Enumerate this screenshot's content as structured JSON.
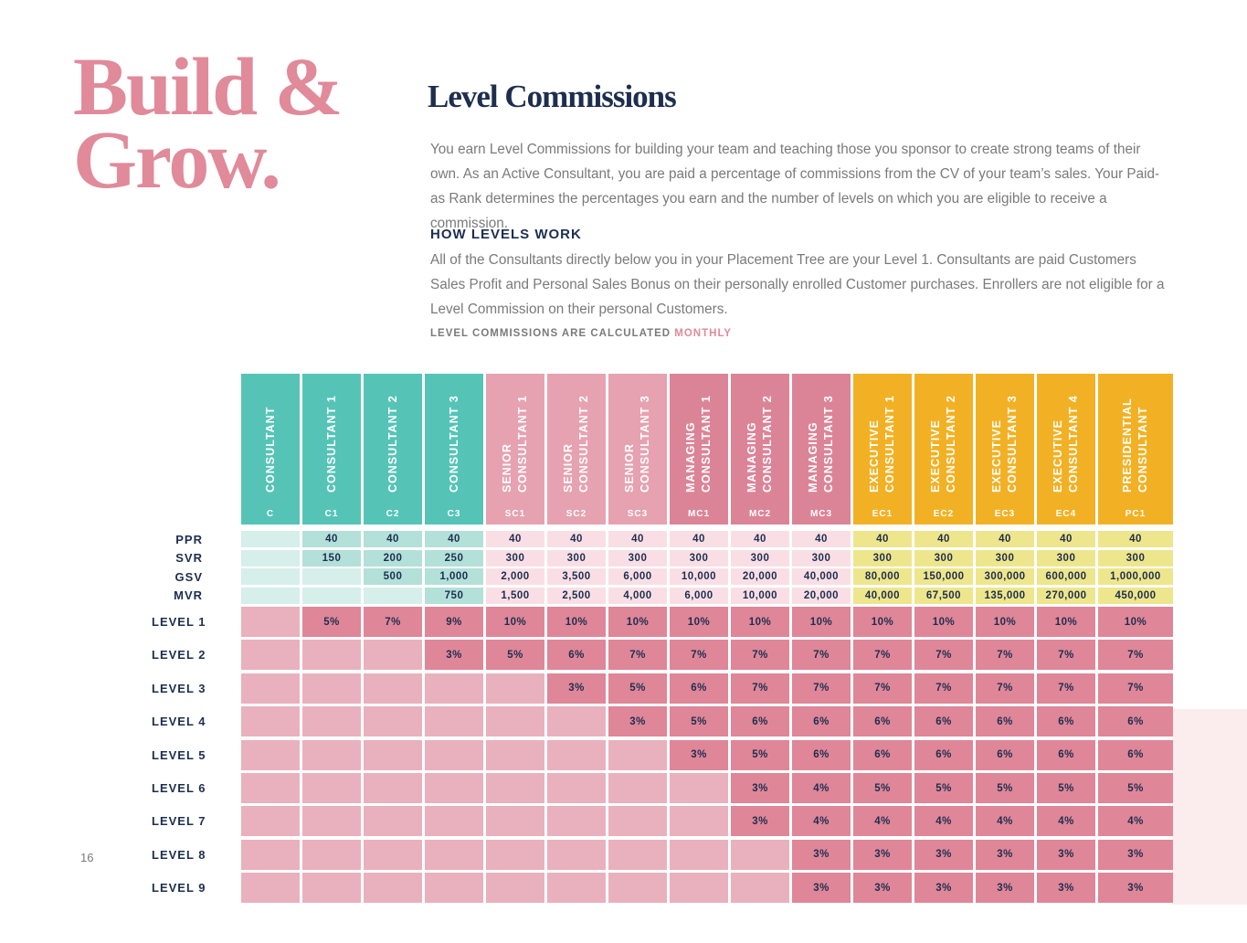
{
  "heading": [
    "Build &",
    "Grow."
  ],
  "title": "Level Commissions",
  "intro": "You earn Level Commissions for building your team and teaching those you sponsor to create strong teams of their own. As an Active Consultant, you are paid a percentage of commissions from the CV of your team’s sales. Your Paid-as Rank determines the percentages you earn and the number of levels on which you are eligible to receive a commission.",
  "subheading": "HOW LEVELS WORK",
  "body": "All of the Consultants directly below you in your Placement Tree are your Level 1. Consultants are paid Customers Sales Profit and Personal Sales Bonus on their personally enrolled Customer purchases. Enrollers are not eligible for a Level Commission on their personal Customers.",
  "note": {
    "text": "LEVEL COMMISSIONS ARE CALCULATED",
    "highlight": "MONTHLY"
  },
  "page_number": "16",
  "table": {
    "columns": [
      {
        "name": "CONSULTANT",
        "code": "C",
        "color": "#55c4b6"
      },
      {
        "name": "CONSULTANT 1",
        "code": "C1",
        "color": "#55c4b6"
      },
      {
        "name": "CONSULTANT 2",
        "code": "C2",
        "color": "#55c4b6"
      },
      {
        "name": "CONSULTANT 3",
        "code": "C3",
        "color": "#55c4b6"
      },
      {
        "name": "SENIOR CONSULTANT 1",
        "code": "SC1",
        "color": "#e6a2b1"
      },
      {
        "name": "SENIOR CONSULTANT 2",
        "code": "SC2",
        "color": "#e6a2b1"
      },
      {
        "name": "SENIOR CONSULTANT 3",
        "code": "SC3",
        "color": "#e6a2b1"
      },
      {
        "name": "MANAGING CONSULTANT 1",
        "code": "MC1",
        "color": "#dc8497"
      },
      {
        "name": "MANAGING CONSULTANT 2",
        "code": "MC2",
        "color": "#dc8497"
      },
      {
        "name": "MANAGING CONSULTANT 3",
        "code": "MC3",
        "color": "#dc8497"
      },
      {
        "name": "EXECUTIVE CONSULTANT 1",
        "code": "EC1",
        "color": "#f2b124"
      },
      {
        "name": "EXECUTIVE CONSULTANT 2",
        "code": "EC2",
        "color": "#f2b124"
      },
      {
        "name": "EXECUTIVE CONSULTANT 3",
        "code": "EC3",
        "color": "#f2b124"
      },
      {
        "name": "EXECUTIVE CONSULTANT 4",
        "code": "EC4",
        "color": "#f2b124"
      },
      {
        "name": "PRESIDENTIAL CONSULTANT",
        "code": "PC1",
        "color": "#f2b124"
      }
    ],
    "requirements": [
      {
        "label": "PPR",
        "cells": [
          null,
          "40",
          "40",
          "40",
          "40",
          "40",
          "40",
          "40",
          "40",
          "40",
          "40",
          "40",
          "40",
          "40",
          "40"
        ]
      },
      {
        "label": "SVR",
        "cells": [
          null,
          "150",
          "200",
          "250",
          "300",
          "300",
          "300",
          "300",
          "300",
          "300",
          "300",
          "300",
          "300",
          "300",
          "300"
        ]
      },
      {
        "label": "GSV",
        "cells": [
          null,
          null,
          "500",
          "1,000",
          "2,000",
          "3,500",
          "6,000",
          "10,000",
          "20,000",
          "40,000",
          "80,000",
          "150,000",
          "300,000",
          "600,000",
          "1,000,000"
        ]
      },
      {
        "label": "MVR",
        "cells": [
          null,
          null,
          null,
          "750",
          "1,500",
          "2,500",
          "4,000",
          "6,000",
          "10,000",
          "20,000",
          "40,000",
          "67,500",
          "135,000",
          "270,000",
          "450,000"
        ]
      }
    ],
    "levels": [
      {
        "label": "LEVEL 1",
        "cells": [
          null,
          "5%",
          "7%",
          "9%",
          "10%",
          "10%",
          "10%",
          "10%",
          "10%",
          "10%",
          "10%",
          "10%",
          "10%",
          "10%",
          "10%"
        ]
      },
      {
        "label": "LEVEL 2",
        "cells": [
          null,
          null,
          null,
          "3%",
          "5%",
          "6%",
          "7%",
          "7%",
          "7%",
          "7%",
          "7%",
          "7%",
          "7%",
          "7%",
          "7%"
        ]
      },
      {
        "label": "LEVEL 3",
        "cells": [
          null,
          null,
          null,
          null,
          null,
          "3%",
          "5%",
          "6%",
          "7%",
          "7%",
          "7%",
          "7%",
          "7%",
          "7%",
          "7%"
        ]
      },
      {
        "label": "LEVEL 4",
        "cells": [
          null,
          null,
          null,
          null,
          null,
          null,
          "3%",
          "5%",
          "6%",
          "6%",
          "6%",
          "6%",
          "6%",
          "6%",
          "6%"
        ]
      },
      {
        "label": "LEVEL 5",
        "cells": [
          null,
          null,
          null,
          null,
          null,
          null,
          null,
          "3%",
          "5%",
          "6%",
          "6%",
          "6%",
          "6%",
          "6%",
          "6%"
        ]
      },
      {
        "label": "LEVEL 6",
        "cells": [
          null,
          null,
          null,
          null,
          null,
          null,
          null,
          null,
          "3%",
          "4%",
          "5%",
          "5%",
          "5%",
          "5%",
          "5%"
        ]
      },
      {
        "label": "LEVEL 7",
        "cells": [
          null,
          null,
          null,
          null,
          null,
          null,
          null,
          null,
          "3%",
          "4%",
          "4%",
          "4%",
          "4%",
          "4%",
          "4%"
        ]
      },
      {
        "label": "LEVEL 8",
        "cells": [
          null,
          null,
          null,
          null,
          null,
          null,
          null,
          null,
          null,
          "3%",
          "3%",
          "3%",
          "3%",
          "3%",
          "3%"
        ]
      },
      {
        "label": "LEVEL 9",
        "cells": [
          null,
          null,
          null,
          null,
          null,
          null,
          null,
          null,
          null,
          "3%",
          "3%",
          "3%",
          "3%",
          "3%",
          "3%"
        ]
      }
    ]
  }
}
